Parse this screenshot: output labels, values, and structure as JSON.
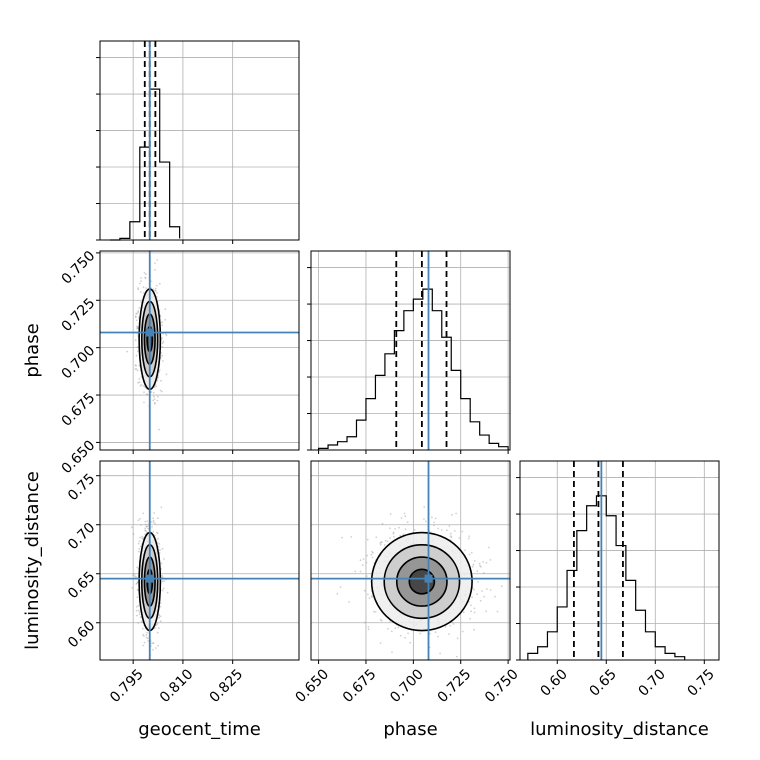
{
  "chart_data": {
    "type": "corner",
    "parameters": [
      "geocent_time",
      "phase",
      "luminosity_distance"
    ],
    "axis_labels": {
      "geocent_time": "geocent_time",
      "phase": "phase",
      "luminosity_distance": "luminosity_distance"
    },
    "ranges": {
      "geocent_time": [
        0.785,
        0.845
      ],
      "phase": [
        0.646,
        0.751
      ],
      "luminosity_distance": [
        0.562,
        0.765
      ]
    },
    "ticks": {
      "geocent_time": [
        0.795,
        0.81,
        0.825
      ],
      "phase": [
        0.65,
        0.675,
        0.7,
        0.725,
        0.75
      ],
      "luminosity_distance": [
        0.6,
        0.65,
        0.7,
        0.75
      ]
    },
    "tick_labels": {
      "geocent_time": [
        "0.795",
        "0.810",
        "0.825"
      ],
      "phase": [
        "0.650",
        "0.675",
        "0.700",
        "0.725",
        "0.750"
      ],
      "luminosity_distance": [
        "0.60",
        "0.65",
        "0.70",
        "0.75"
      ]
    },
    "truths": {
      "geocent_time": 0.8,
      "phase": 0.708,
      "luminosity_distance": 0.645
    },
    "quantiles": {
      "geocent_time": [
        0.7985,
        0.8,
        0.8017
      ],
      "phase": [
        0.691,
        0.7045,
        0.7175
      ],
      "luminosity_distance": [
        0.617,
        0.642,
        0.667
      ]
    },
    "histograms": {
      "geocent_time": {
        "bins": [
          0.788,
          0.791,
          0.794,
          0.797,
          0.8,
          0.803,
          0.806,
          0.809
        ],
        "heights": [
          0.0,
          0.01,
          0.11,
          0.56,
          0.91,
          0.47,
          0.08,
          0.01
        ]
      },
      "phase": {
        "bins": [
          0.65,
          0.655,
          0.66,
          0.665,
          0.67,
          0.675,
          0.68,
          0.685,
          0.69,
          0.695,
          0.7,
          0.705,
          0.71,
          0.715,
          0.72,
          0.725,
          0.73,
          0.735,
          0.74,
          0.745,
          0.75
        ],
        "heights": [
          0.01,
          0.03,
          0.05,
          0.08,
          0.18,
          0.31,
          0.45,
          0.58,
          0.72,
          0.84,
          0.91,
          0.97,
          0.84,
          0.68,
          0.48,
          0.31,
          0.17,
          0.09,
          0.04,
          0.02
        ]
      },
      "luminosity_distance": {
        "bins": [
          0.57,
          0.58,
          0.59,
          0.6,
          0.61,
          0.62,
          0.63,
          0.64,
          0.65,
          0.66,
          0.67,
          0.68,
          0.69,
          0.7,
          0.71,
          0.72,
          0.73
        ],
        "heights": [
          0.04,
          0.08,
          0.17,
          0.32,
          0.54,
          0.78,
          0.93,
          0.99,
          0.87,
          0.69,
          0.48,
          0.3,
          0.17,
          0.08,
          0.04,
          0.02
        ]
      }
    },
    "marginal_ylim": [
      0,
      1.2
    ],
    "grid": true
  }
}
